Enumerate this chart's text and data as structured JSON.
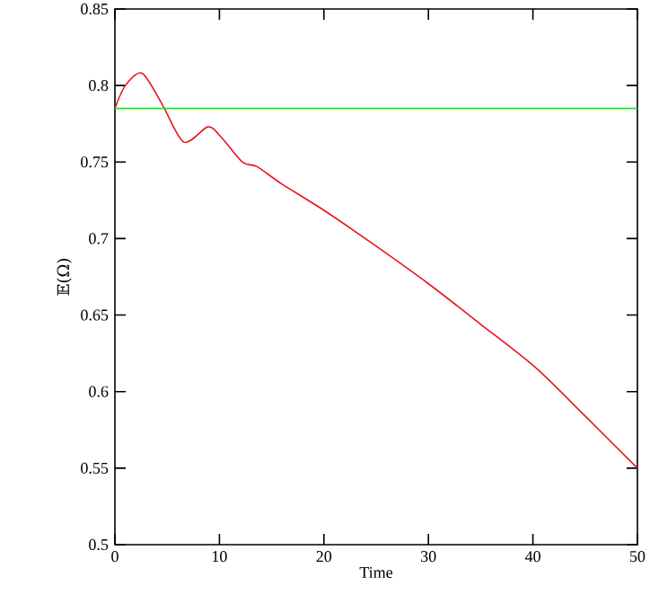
{
  "chart_data": {
    "type": "line",
    "xlabel": "Time",
    "ylabel": "𝔼(Ω)",
    "xlim": [
      0,
      50
    ],
    "ylim": [
      0.5,
      0.85
    ],
    "xticks": [
      0,
      10,
      20,
      30,
      40,
      50
    ],
    "yticks": [
      0.5,
      0.55,
      0.6,
      0.65,
      0.7,
      0.75,
      0.8,
      0.85
    ],
    "grid": false,
    "line_style": "solid",
    "marker": "none",
    "series": [
      {
        "color": "#e8141e",
        "x": [
          0,
          1,
          2.6,
          4.5,
          6.6,
          8.9,
          10.2,
          12.2,
          13.6,
          15.9,
          20.1,
          25,
          30.1,
          35,
          40.2,
          45,
          50
        ],
        "values": [
          0.785,
          0.8,
          0.808,
          0.788,
          0.763,
          0.773,
          0.766,
          0.75,
          0.747,
          0.736,
          0.718,
          0.695,
          0.67,
          0.644,
          0.616,
          0.584,
          0.55
        ]
      }
    ],
    "ref_lines": [
      {
        "axis": "y",
        "value": 0.785,
        "color": "#1ee81e"
      }
    ]
  }
}
